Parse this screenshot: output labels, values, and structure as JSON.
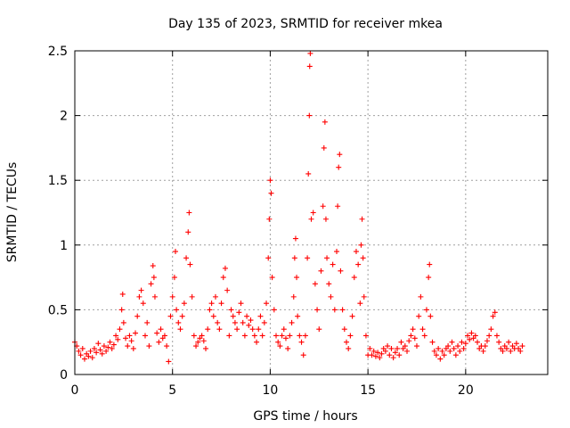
{
  "chart_data": {
    "type": "scatter",
    "title": "Day 135 of 2023, SRMTID for receiver mkea",
    "xlabel": "GPS time / hours",
    "ylabel": "SRMTID / TECUs",
    "xlim": [
      0,
      24.2
    ],
    "ylim": [
      0,
      2.5
    ],
    "x_ticks": [
      0,
      5,
      10,
      15,
      20
    ],
    "y_ticks": [
      0,
      0.5,
      1,
      1.5,
      2,
      2.5
    ],
    "x_tick_labels": [
      "0",
      "5",
      "10",
      "15",
      "20"
    ],
    "y_tick_labels": [
      "0",
      "0.5",
      "1",
      "1.5",
      "2",
      "2.5"
    ],
    "grid": true,
    "marker": "plus",
    "color": "#ff0000",
    "series": [
      {
        "name": "SRMTID",
        "points": [
          [
            0.0,
            0.25
          ],
          [
            0.1,
            0.22
          ],
          [
            0.2,
            0.18
          ],
          [
            0.3,
            0.15
          ],
          [
            0.4,
            0.2
          ],
          [
            0.5,
            0.12
          ],
          [
            0.6,
            0.16
          ],
          [
            0.7,
            0.14
          ],
          [
            0.8,
            0.18
          ],
          [
            0.9,
            0.13
          ],
          [
            1.0,
            0.2
          ],
          [
            1.1,
            0.17
          ],
          [
            1.2,
            0.24
          ],
          [
            1.3,
            0.19
          ],
          [
            1.4,
            0.16
          ],
          [
            1.5,
            0.22
          ],
          [
            1.6,
            0.18
          ],
          [
            1.7,
            0.21
          ],
          [
            1.8,
            0.25
          ],
          [
            1.9,
            0.2
          ],
          [
            2.0,
            0.23
          ],
          [
            2.1,
            0.3
          ],
          [
            2.2,
            0.27
          ],
          [
            2.3,
            0.35
          ],
          [
            2.4,
            0.5
          ],
          [
            2.45,
            0.62
          ],
          [
            2.5,
            0.4
          ],
          [
            2.6,
            0.28
          ],
          [
            2.7,
            0.22
          ],
          [
            2.8,
            0.3
          ],
          [
            2.9,
            0.26
          ],
          [
            3.0,
            0.2
          ],
          [
            3.1,
            0.32
          ],
          [
            3.2,
            0.45
          ],
          [
            3.3,
            0.6
          ],
          [
            3.4,
            0.65
          ],
          [
            3.5,
            0.55
          ],
          [
            3.6,
            0.3
          ],
          [
            3.7,
            0.4
          ],
          [
            3.8,
            0.22
          ],
          [
            3.9,
            0.7
          ],
          [
            4.0,
            0.84
          ],
          [
            4.05,
            0.75
          ],
          [
            4.1,
            0.6
          ],
          [
            4.2,
            0.32
          ],
          [
            4.3,
            0.25
          ],
          [
            4.4,
            0.35
          ],
          [
            4.5,
            0.28
          ],
          [
            4.6,
            0.3
          ],
          [
            4.7,
            0.22
          ],
          [
            4.8,
            0.1
          ],
          [
            4.9,
            0.45
          ],
          [
            5.0,
            0.6
          ],
          [
            5.1,
            0.75
          ],
          [
            5.15,
            0.95
          ],
          [
            5.2,
            0.5
          ],
          [
            5.3,
            0.4
          ],
          [
            5.4,
            0.35
          ],
          [
            5.5,
            0.45
          ],
          [
            5.6,
            0.55
          ],
          [
            5.7,
            0.9
          ],
          [
            5.8,
            1.1
          ],
          [
            5.85,
            1.25
          ],
          [
            5.9,
            0.85
          ],
          [
            6.0,
            0.6
          ],
          [
            6.1,
            0.3
          ],
          [
            6.2,
            0.22
          ],
          [
            6.3,
            0.25
          ],
          [
            6.4,
            0.28
          ],
          [
            6.5,
            0.3
          ],
          [
            6.6,
            0.26
          ],
          [
            6.7,
            0.2
          ],
          [
            6.8,
            0.35
          ],
          [
            6.9,
            0.5
          ],
          [
            7.0,
            0.55
          ],
          [
            7.1,
            0.45
          ],
          [
            7.2,
            0.6
          ],
          [
            7.3,
            0.4
          ],
          [
            7.4,
            0.35
          ],
          [
            7.5,
            0.55
          ],
          [
            7.6,
            0.75
          ],
          [
            7.7,
            0.82
          ],
          [
            7.8,
            0.65
          ],
          [
            7.9,
            0.3
          ],
          [
            8.0,
            0.5
          ],
          [
            8.1,
            0.45
          ],
          [
            8.2,
            0.4
          ],
          [
            8.3,
            0.35
          ],
          [
            8.4,
            0.48
          ],
          [
            8.5,
            0.55
          ],
          [
            8.6,
            0.4
          ],
          [
            8.7,
            0.3
          ],
          [
            8.8,
            0.45
          ],
          [
            8.9,
            0.38
          ],
          [
            9.0,
            0.42
          ],
          [
            9.1,
            0.35
          ],
          [
            9.2,
            0.3
          ],
          [
            9.3,
            0.25
          ],
          [
            9.4,
            0.35
          ],
          [
            9.5,
            0.45
          ],
          [
            9.6,
            0.3
          ],
          [
            9.7,
            0.4
          ],
          [
            9.8,
            0.55
          ],
          [
            9.9,
            0.9
          ],
          [
            9.95,
            1.2
          ],
          [
            10.0,
            1.5
          ],
          [
            10.05,
            1.4
          ],
          [
            10.1,
            0.75
          ],
          [
            10.2,
            0.5
          ],
          [
            10.3,
            0.3
          ],
          [
            10.4,
            0.25
          ],
          [
            10.5,
            0.22
          ],
          [
            10.6,
            0.3
          ],
          [
            10.7,
            0.35
          ],
          [
            10.8,
            0.28
          ],
          [
            10.9,
            0.2
          ],
          [
            11.0,
            0.3
          ],
          [
            11.1,
            0.4
          ],
          [
            11.2,
            0.6
          ],
          [
            11.25,
            0.9
          ],
          [
            11.3,
            1.05
          ],
          [
            11.35,
            0.75
          ],
          [
            11.4,
            0.45
          ],
          [
            11.5,
            0.3
          ],
          [
            11.6,
            0.25
          ],
          [
            11.7,
            0.15
          ],
          [
            11.8,
            0.3
          ],
          [
            11.9,
            0.9
          ],
          [
            11.95,
            1.55
          ],
          [
            12.0,
            2.0
          ],
          [
            12.02,
            2.38
          ],
          [
            12.05,
            2.48
          ],
          [
            12.1,
            1.2
          ],
          [
            12.2,
            1.25
          ],
          [
            12.3,
            0.7
          ],
          [
            12.4,
            0.5
          ],
          [
            12.5,
            0.35
          ],
          [
            12.6,
            0.8
          ],
          [
            12.7,
            1.3
          ],
          [
            12.75,
            1.75
          ],
          [
            12.8,
            1.95
          ],
          [
            12.85,
            1.2
          ],
          [
            12.9,
            0.9
          ],
          [
            13.0,
            0.7
          ],
          [
            13.1,
            0.6
          ],
          [
            13.2,
            0.85
          ],
          [
            13.3,
            0.5
          ],
          [
            13.4,
            0.95
          ],
          [
            13.45,
            1.3
          ],
          [
            13.5,
            1.6
          ],
          [
            13.55,
            1.7
          ],
          [
            13.6,
            0.8
          ],
          [
            13.7,
            0.5
          ],
          [
            13.8,
            0.35
          ],
          [
            13.9,
            0.25
          ],
          [
            14.0,
            0.2
          ],
          [
            14.1,
            0.3
          ],
          [
            14.2,
            0.45
          ],
          [
            14.3,
            0.75
          ],
          [
            14.4,
            0.95
          ],
          [
            14.5,
            0.85
          ],
          [
            14.6,
            0.55
          ],
          [
            14.65,
            1.0
          ],
          [
            14.7,
            1.2
          ],
          [
            14.75,
            0.9
          ],
          [
            14.8,
            0.6
          ],
          [
            14.9,
            0.3
          ],
          [
            15.0,
            0.15
          ],
          [
            15.1,
            0.2
          ],
          [
            15.2,
            0.15
          ],
          [
            15.3,
            0.18
          ],
          [
            15.4,
            0.14
          ],
          [
            15.5,
            0.17
          ],
          [
            15.6,
            0.13
          ],
          [
            15.7,
            0.16
          ],
          [
            15.8,
            0.2
          ],
          [
            15.9,
            0.18
          ],
          [
            16.0,
            0.22
          ],
          [
            16.1,
            0.15
          ],
          [
            16.2,
            0.2
          ],
          [
            16.3,
            0.13
          ],
          [
            16.4,
            0.17
          ],
          [
            16.5,
            0.2
          ],
          [
            16.6,
            0.15
          ],
          [
            16.7,
            0.25
          ],
          [
            16.8,
            0.2
          ],
          [
            16.9,
            0.22
          ],
          [
            17.0,
            0.18
          ],
          [
            17.1,
            0.26
          ],
          [
            17.2,
            0.3
          ],
          [
            17.3,
            0.35
          ],
          [
            17.4,
            0.28
          ],
          [
            17.5,
            0.22
          ],
          [
            17.6,
            0.45
          ],
          [
            17.7,
            0.6
          ],
          [
            17.8,
            0.35
          ],
          [
            17.9,
            0.3
          ],
          [
            18.0,
            0.5
          ],
          [
            18.1,
            0.75
          ],
          [
            18.15,
            0.85
          ],
          [
            18.2,
            0.45
          ],
          [
            18.3,
            0.25
          ],
          [
            18.4,
            0.18
          ],
          [
            18.5,
            0.15
          ],
          [
            18.6,
            0.2
          ],
          [
            18.7,
            0.12
          ],
          [
            18.8,
            0.18
          ],
          [
            18.9,
            0.15
          ],
          [
            19.0,
            0.2
          ],
          [
            19.1,
            0.22
          ],
          [
            19.2,
            0.18
          ],
          [
            19.3,
            0.25
          ],
          [
            19.4,
            0.2
          ],
          [
            19.5,
            0.15
          ],
          [
            19.6,
            0.22
          ],
          [
            19.7,
            0.18
          ],
          [
            19.8,
            0.25
          ],
          [
            19.9,
            0.2
          ],
          [
            20.0,
            0.24
          ],
          [
            20.1,
            0.3
          ],
          [
            20.2,
            0.27
          ],
          [
            20.3,
            0.32
          ],
          [
            20.4,
            0.28
          ],
          [
            20.5,
            0.3
          ],
          [
            20.6,
            0.25
          ],
          [
            20.7,
            0.2
          ],
          [
            20.8,
            0.22
          ],
          [
            20.9,
            0.18
          ],
          [
            21.0,
            0.22
          ],
          [
            21.1,
            0.26
          ],
          [
            21.2,
            0.3
          ],
          [
            21.3,
            0.35
          ],
          [
            21.4,
            0.45
          ],
          [
            21.5,
            0.48
          ],
          [
            21.6,
            0.3
          ],
          [
            21.7,
            0.25
          ],
          [
            21.8,
            0.2
          ],
          [
            21.9,
            0.18
          ],
          [
            22.0,
            0.22
          ],
          [
            22.1,
            0.2
          ],
          [
            22.2,
            0.25
          ],
          [
            22.3,
            0.18
          ],
          [
            22.4,
            0.22
          ],
          [
            22.5,
            0.2
          ],
          [
            22.6,
            0.24
          ],
          [
            22.7,
            0.2
          ],
          [
            22.8,
            0.18
          ],
          [
            22.9,
            0.22
          ]
        ]
      }
    ]
  }
}
